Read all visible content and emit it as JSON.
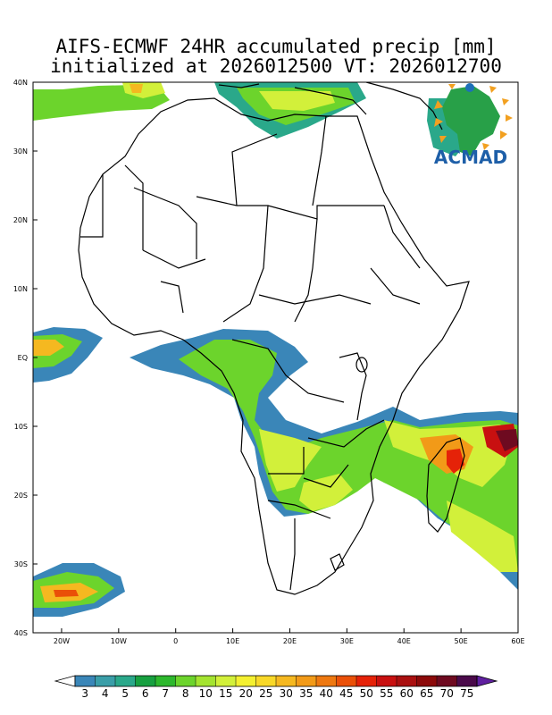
{
  "title_line1": "AIFS-ECMWF 24HR accumulated precip [mm]",
  "title_line2": "initialized at 2026012500 VT: 2026012700",
  "logo_text": "ACMAD",
  "lat_labels": [
    "40N",
    "30N",
    "20N",
    "10N",
    "EQ",
    "10S",
    "20S",
    "30S",
    "40S"
  ],
  "lat_values": [
    40,
    30,
    20,
    10,
    0,
    -10,
    -20,
    -30,
    -40
  ],
  "lon_labels": [
    "20W",
    "10W",
    "0",
    "10E",
    "20E",
    "30E",
    "40E",
    "50E",
    "60E"
  ],
  "lon_values": [
    -20,
    -10,
    0,
    10,
    20,
    30,
    40,
    50,
    60
  ],
  "map_extent": {
    "lon_min": -25,
    "lon_max": 60,
    "lat_min": -40,
    "lat_max": 40
  },
  "colorbar": {
    "labels": [
      "3",
      "4",
      "5",
      "6",
      "7",
      "8",
      "10",
      "15",
      "20",
      "25",
      "30",
      "35",
      "40",
      "45",
      "50",
      "55",
      "60",
      "65",
      "70",
      "75"
    ],
    "colors": [
      "#3a86b8",
      "#3a9ea8",
      "#2aa88a",
      "#17a040",
      "#2db82d",
      "#6cd42c",
      "#a4e430",
      "#d2f03a",
      "#f4f030",
      "#f8d828",
      "#f5b820",
      "#f29a18",
      "#ee7810",
      "#ea5008",
      "#e52208",
      "#c81010",
      "#aa1010",
      "#8c0a0a",
      "#6e0a20",
      "#4a0a4a"
    ],
    "end_low": "#ffffff",
    "end_high": "#6020a0"
  }
}
